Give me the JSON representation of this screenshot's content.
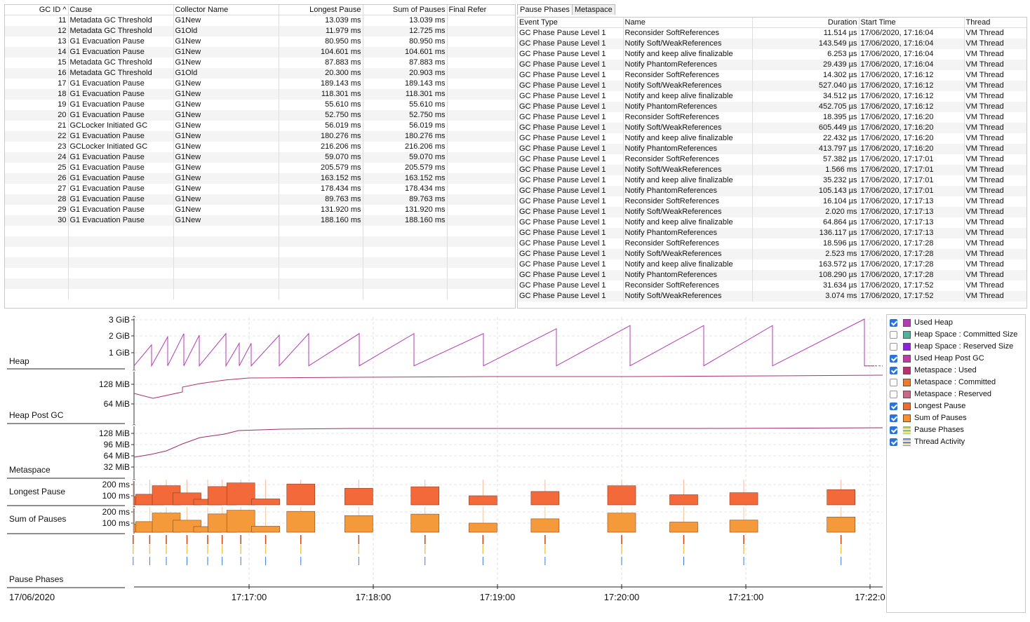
{
  "gc_table": {
    "columns": [
      "GC ID ^",
      "Cause",
      "Collector Name",
      "Longest Pause",
      "Sum of Pauses",
      "Final Refer"
    ],
    "rows": [
      [
        "11",
        "Metadata GC Threshold",
        "G1New",
        "13.039 ms",
        "13.039 ms"
      ],
      [
        "12",
        "Metadata GC Threshold",
        "G1Old",
        "11.979 ms",
        "12.725 ms"
      ],
      [
        "13",
        "G1 Evacuation Pause",
        "G1New",
        "80.950 ms",
        "80.950 ms"
      ],
      [
        "14",
        "G1 Evacuation Pause",
        "G1New",
        "104.601 ms",
        "104.601 ms"
      ],
      [
        "15",
        "Metadata GC Threshold",
        "G1New",
        "87.883 ms",
        "87.883 ms"
      ],
      [
        "16",
        "Metadata GC Threshold",
        "G1Old",
        "20.300 ms",
        "20.903 ms"
      ],
      [
        "17",
        "G1 Evacuation Pause",
        "G1New",
        "189.143 ms",
        "189.143 ms"
      ],
      [
        "18",
        "G1 Evacuation Pause",
        "G1New",
        "118.301 ms",
        "118.301 ms"
      ],
      [
        "19",
        "G1 Evacuation Pause",
        "G1New",
        "55.610 ms",
        "55.610 ms"
      ],
      [
        "20",
        "G1 Evacuation Pause",
        "G1New",
        "52.750 ms",
        "52.750 ms"
      ],
      [
        "21",
        "GCLocker Initiated GC",
        "G1New",
        "56.019 ms",
        "56.019 ms"
      ],
      [
        "22",
        "G1 Evacuation Pause",
        "G1New",
        "180.276 ms",
        "180.276 ms"
      ],
      [
        "23",
        "GCLocker Initiated GC",
        "G1New",
        "216.206 ms",
        "216.206 ms"
      ],
      [
        "24",
        "G1 Evacuation Pause",
        "G1New",
        "59.070 ms",
        "59.070 ms"
      ],
      [
        "25",
        "G1 Evacuation Pause",
        "G1New",
        "205.579 ms",
        "205.579 ms"
      ],
      [
        "26",
        "G1 Evacuation Pause",
        "G1New",
        "163.152 ms",
        "163.152 ms"
      ],
      [
        "27",
        "G1 Evacuation Pause",
        "G1New",
        "178.434 ms",
        "178.434 ms"
      ],
      [
        "28",
        "G1 Evacuation Pause",
        "G1New",
        "89.763 ms",
        "89.763 ms"
      ],
      [
        "29",
        "G1 Evacuation Pause",
        "G1New",
        "131.920 ms",
        "131.920 ms"
      ],
      [
        "30",
        "G1 Evacuation Pause",
        "G1New",
        "188.160 ms",
        "188.160 ms"
      ]
    ]
  },
  "tabs": [
    "Pause Phases",
    "Metaspace"
  ],
  "phase_table": {
    "columns": [
      "Event Type",
      "Name",
      "Duration",
      "Start Time",
      "Thread"
    ],
    "rows": [
      [
        "GC Phase Pause Level 1",
        "Reconsider SoftReferences",
        "11.514 µs",
        "17/06/2020, 17:16:04",
        "VM Thread"
      ],
      [
        "GC Phase Pause Level 1",
        "Notify Soft/WeakReferences",
        "143.549 µs",
        "17/06/2020, 17:16:04",
        "VM Thread"
      ],
      [
        "GC Phase Pause Level 1",
        "Notify and keep alive finalizable",
        "6.253 µs",
        "17/06/2020, 17:16:04",
        "VM Thread"
      ],
      [
        "GC Phase Pause Level 1",
        "Notify PhantomReferences",
        "29.439 µs",
        "17/06/2020, 17:16:04",
        "VM Thread"
      ],
      [
        "GC Phase Pause Level 1",
        "Reconsider SoftReferences",
        "14.302 µs",
        "17/06/2020, 17:16:12",
        "VM Thread"
      ],
      [
        "GC Phase Pause Level 1",
        "Notify Soft/WeakReferences",
        "527.040 µs",
        "17/06/2020, 17:16:12",
        "VM Thread"
      ],
      [
        "GC Phase Pause Level 1",
        "Notify and keep alive finalizable",
        "34.512 µs",
        "17/06/2020, 17:16:12",
        "VM Thread"
      ],
      [
        "GC Phase Pause Level 1",
        "Notify PhantomReferences",
        "452.705 µs",
        "17/06/2020, 17:16:12",
        "VM Thread"
      ],
      [
        "GC Phase Pause Level 1",
        "Reconsider SoftReferences",
        "18.395 µs",
        "17/06/2020, 17:16:20",
        "VM Thread"
      ],
      [
        "GC Phase Pause Level 1",
        "Notify Soft/WeakReferences",
        "605.449 µs",
        "17/06/2020, 17:16:20",
        "VM Thread"
      ],
      [
        "GC Phase Pause Level 1",
        "Notify and keep alive finalizable",
        "22.432 µs",
        "17/06/2020, 17:16:20",
        "VM Thread"
      ],
      [
        "GC Phase Pause Level 1",
        "Notify PhantomReferences",
        "413.797 µs",
        "17/06/2020, 17:16:20",
        "VM Thread"
      ],
      [
        "GC Phase Pause Level 1",
        "Reconsider SoftReferences",
        "57.382 µs",
        "17/06/2020, 17:17:01",
        "VM Thread"
      ],
      [
        "GC Phase Pause Level 1",
        "Notify Soft/WeakReferences",
        "1.566 ms",
        "17/06/2020, 17:17:01",
        "VM Thread"
      ],
      [
        "GC Phase Pause Level 1",
        "Notify and keep alive finalizable",
        "35.232 µs",
        "17/06/2020, 17:17:01",
        "VM Thread"
      ],
      [
        "GC Phase Pause Level 1",
        "Notify PhantomReferences",
        "105.143 µs",
        "17/06/2020, 17:17:01",
        "VM Thread"
      ],
      [
        "GC Phase Pause Level 1",
        "Reconsider SoftReferences",
        "16.104 µs",
        "17/06/2020, 17:17:13",
        "VM Thread"
      ],
      [
        "GC Phase Pause Level 1",
        "Notify Soft/WeakReferences",
        "2.020 ms",
        "17/06/2020, 17:17:13",
        "VM Thread"
      ],
      [
        "GC Phase Pause Level 1",
        "Notify and keep alive finalizable",
        "64.864 µs",
        "17/06/2020, 17:17:13",
        "VM Thread"
      ],
      [
        "GC Phase Pause Level 1",
        "Notify PhantomReferences",
        "136.117 µs",
        "17/06/2020, 17:17:13",
        "VM Thread"
      ],
      [
        "GC Phase Pause Level 1",
        "Reconsider SoftReferences",
        "18.596 µs",
        "17/06/2020, 17:17:28",
        "VM Thread"
      ],
      [
        "GC Phase Pause Level 1",
        "Notify Soft/WeakReferences",
        "2.523 ms",
        "17/06/2020, 17:17:28",
        "VM Thread"
      ],
      [
        "GC Phase Pause Level 1",
        "Notify and keep alive finalizable",
        "163.572 µs",
        "17/06/2020, 17:17:28",
        "VM Thread"
      ],
      [
        "GC Phase Pause Level 1",
        "Notify PhantomReferences",
        "108.290 µs",
        "17/06/2020, 17:17:28",
        "VM Thread"
      ],
      [
        "GC Phase Pause Level 1",
        "Reconsider SoftReferences",
        "31.634 µs",
        "17/06/2020, 17:17:52",
        "VM Thread"
      ],
      [
        "GC Phase Pause Level 1",
        "Notify Soft/WeakReferences",
        "3.074 ms",
        "17/06/2020, 17:17:52",
        "VM Thread"
      ]
    ]
  },
  "chart": {
    "date_label": "17/06/2020",
    "x_ticks": [
      "17:17:00",
      "17:18:00",
      "17:19:00",
      "17:20:00",
      "17:21:00",
      "17:22:0"
    ],
    "lanes": {
      "heap": {
        "label": "Heap",
        "ticks": [
          "3 GiB",
          "2 GiB",
          "1 GiB"
        ]
      },
      "heap_post_gc": {
        "label": "Heap Post GC",
        "ticks": [
          "128 MiB",
          "64 MiB"
        ]
      },
      "metaspace": {
        "label": "Metaspace",
        "ticks": [
          "128 MiB",
          "96 MiB",
          "64 MiB",
          "32 MiB"
        ]
      },
      "longest_pause": {
        "label": "Longest Pause",
        "ticks": [
          "200 ms",
          "100 ms"
        ]
      },
      "sum_of_pauses": {
        "label": "Sum of Pauses",
        "ticks": [
          "200 ms",
          "100 ms"
        ]
      },
      "pause_phases": {
        "label": "Pause Phases"
      }
    },
    "colors": {
      "heap": "#b23cb2",
      "post_gc": "#b03070",
      "meta": "#9c2a70",
      "longest": "#f4693a",
      "sum": "#f59a3a"
    }
  },
  "legend": [
    {
      "label": "Used Heap",
      "checked": true,
      "color": "#b23cb2"
    },
    {
      "label": "Heap Space : Committed Size",
      "checked": false,
      "color": "#4db39a"
    },
    {
      "label": "Heap Space : Reserved Size",
      "checked": false,
      "color": "#8a22d8"
    },
    {
      "label": "Used Heap Post GC",
      "checked": true,
      "color": "#c23aa8"
    },
    {
      "label": "Metaspace : Used",
      "checked": true,
      "color": "#b8336e"
    },
    {
      "label": "Metaspace : Committed",
      "checked": false,
      "color": "#f07a26"
    },
    {
      "label": "Metaspace : Reserved",
      "checked": false,
      "color": "#c46a86"
    },
    {
      "label": "Longest Pause",
      "checked": true,
      "color": "#f26a2e"
    },
    {
      "label": "Sum of Pauses",
      "checked": true,
      "color": "#f59036"
    },
    {
      "label": "Pause Phases",
      "checked": true,
      "color": "stripes-phase"
    },
    {
      "label": "Thread Activity",
      "checked": true,
      "color": "stripes-thread"
    }
  ],
  "chart_data": {
    "type": "bar",
    "x": [
      "17:16:04",
      "17:16:12",
      "17:16:20",
      "17:16:30",
      "17:16:40",
      "17:16:47",
      "17:16:56",
      "17:17:08",
      "17:17:25",
      "17:17:53",
      "17:18:25",
      "17:18:53",
      "17:19:23",
      "17:20:00",
      "17:20:30",
      "17:20:59",
      "17:21:46"
    ],
    "series": [
      {
        "name": "Longest Pause",
        "values": [
          80.9,
          104.6,
          189.1,
          118.3,
          55.6,
          180.3,
          216.2,
          59.1,
          205.6,
          163.2,
          178.4,
          89.8,
          131.9,
          188.2,
          100,
          120,
          150
        ]
      },
      {
        "name": "Sum of Pauses",
        "values": [
          80.9,
          104.6,
          189.1,
          118.3,
          55.6,
          180.3,
          216.2,
          59.1,
          205.6,
          163.2,
          178.4,
          89.8,
          131.9,
          188.2,
          100,
          120,
          150
        ]
      }
    ]
  }
}
